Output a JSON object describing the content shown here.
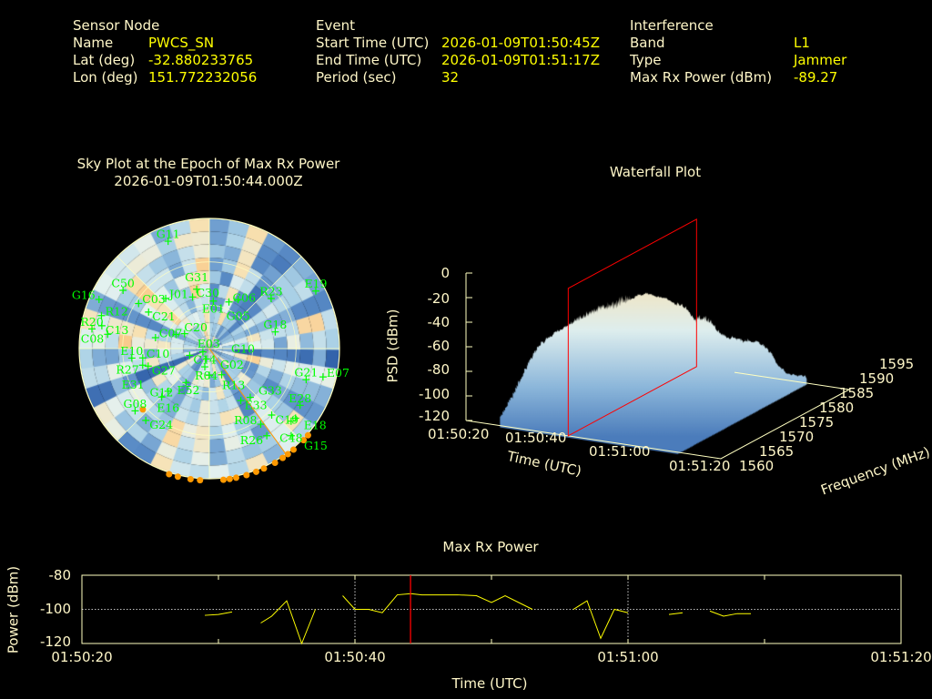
{
  "header": {
    "sensor": {
      "title": "Sensor Node",
      "rows": [
        {
          "label": "Name",
          "value": "PWCS_SN"
        },
        {
          "label": "Lat (deg)",
          "value": "-32.880233765"
        },
        {
          "label": "Lon (deg)",
          "value": "151.772232056"
        }
      ]
    },
    "event": {
      "title": "Event",
      "rows": [
        {
          "label": "Start Time (UTC)",
          "value": "2026-01-09T01:50:45Z"
        },
        {
          "label": "End Time (UTC)",
          "value": "2026-01-09T01:51:17Z"
        },
        {
          "label": "Period (sec)",
          "value": "32"
        }
      ]
    },
    "interference": {
      "title": "Interference",
      "rows": [
        {
          "label": "Band",
          "value": "L1"
        },
        {
          "label": "Type",
          "value": "Jammer"
        },
        {
          "label": "Max Rx Power (dBm)",
          "value": "-89.27"
        }
      ]
    }
  },
  "colors": {
    "label": "#fff7c8",
    "value": "#ffff00",
    "satellite": "#00ff00",
    "jammer": "#ff9900",
    "marker": "#ff0000",
    "line": "#ffff00"
  },
  "chart_data": [
    {
      "type": "scatter",
      "name": "sky-plot",
      "title": "Sky Plot at the Epoch of Max Rx Power",
      "subtitle": "2026-01-09T01:50:44.000Z",
      "coords": "azimuth_deg / elevation_deg",
      "elevation_rings": [
        0,
        30,
        60
      ],
      "satellites": [
        {
          "id": "G11",
          "az": 339,
          "el": 10.5
        },
        {
          "id": "C50",
          "az": 304,
          "el": 18
        },
        {
          "id": "C03",
          "az": 302.5,
          "el": 32
        },
        {
          "id": "J01",
          "az": 319,
          "el": 44
        },
        {
          "id": "G16",
          "az": 294,
          "el": 6.5
        },
        {
          "id": "C21",
          "az": 301,
          "el": 41
        },
        {
          "id": "C30",
          "az": 342,
          "el": 52.5
        },
        {
          "id": "G31",
          "az": 348,
          "el": 48
        },
        {
          "id": "E01",
          "az": 4.8,
          "el": 57
        },
        {
          "id": "C06",
          "az": 22.8,
          "el": 55
        },
        {
          "id": "G05",
          "az": 30.4,
          "el": 50.7
        },
        {
          "id": "R23",
          "az": 51,
          "el": 35
        },
        {
          "id": "E19",
          "az": 61.6,
          "el": 6.3
        },
        {
          "id": "R12",
          "az": 287,
          "el": 12
        },
        {
          "id": "R20",
          "az": 279.5,
          "el": 7.7
        },
        {
          "id": "C13",
          "az": 282,
          "el": 14
        },
        {
          "id": "C08",
          "az": 278,
          "el": 19
        },
        {
          "id": "C07",
          "az": 281.5,
          "el": 52
        },
        {
          "id": "C20",
          "az": 293,
          "el": 65
        },
        {
          "id": "E03",
          "az": 301,
          "el": 70
        },
        {
          "id": "G18",
          "az": 75.8,
          "el": 43
        },
        {
          "id": "E10",
          "az": 263,
          "el": 36
        },
        {
          "id": "C10",
          "az": 262,
          "el": 43.5
        },
        {
          "id": "G27",
          "az": 254,
          "el": 46
        },
        {
          "id": "R27",
          "az": 256,
          "el": 42.5
        },
        {
          "id": "C14",
          "az": 251,
          "el": 75.6
        },
        {
          "id": "G02",
          "az": 243,
          "el": 85
        },
        {
          "id": "R04",
          "az": 196,
          "el": 82.5
        },
        {
          "id": "R13",
          "az": 180,
          "el": 71.6
        },
        {
          "id": "E52",
          "az": 154.8,
          "el": 70
        },
        {
          "id": "G10",
          "az": 194,
          "el": 77
        },
        {
          "id": "G12",
          "az": 214.5,
          "el": 61.5
        },
        {
          "id": "E16",
          "az": 224,
          "el": 49
        },
        {
          "id": "E31",
          "az": 224.5,
          "el": 43
        },
        {
          "id": "G08",
          "az": 230,
          "el": 23
        },
        {
          "id": "G24",
          "az": 221.5,
          "el": 23.7
        },
        {
          "id": "E33",
          "az": 148.8,
          "el": 48
        },
        {
          "id": "G33",
          "az": 140,
          "el": 46
        },
        {
          "id": "G21",
          "az": 107.8,
          "el": 19.7
        },
        {
          "id": "E07",
          "az": 104,
          "el": 9
        },
        {
          "id": "E28",
          "az": 122,
          "el": 16
        },
        {
          "id": "C19",
          "az": 136.8,
          "el": 27
        },
        {
          "id": "E18",
          "az": 128.9,
          "el": 13.4
        },
        {
          "id": "C48",
          "az": 131.6,
          "el": 14.4
        },
        {
          "id": "G15",
          "az": 136.8,
          "el": 7.3
        },
        {
          "id": "R08",
          "az": 145.8,
          "el": 26.8
        },
        {
          "id": "R26",
          "az": 146.6,
          "el": 17.8
        }
      ],
      "jammer_bearing_az": 144,
      "jammer_detections": [
        {
          "az": 130.7,
          "el": 0
        },
        {
          "az": 133.6,
          "el": 0
        },
        {
          "az": 139.7,
          "el": 0
        },
        {
          "az": 142.9,
          "el": 0
        },
        {
          "az": 145.7,
          "el": 0
        },
        {
          "az": 149.7,
          "el": 0
        },
        {
          "az": 155.2,
          "el": 0
        },
        {
          "az": 158.9,
          "el": 0
        },
        {
          "az": 163.4,
          "el": 0
        },
        {
          "az": 168.1,
          "el": 0
        },
        {
          "az": 171,
          "el": 0
        },
        {
          "az": 173.8,
          "el": 0
        },
        {
          "az": 184.1,
          "el": 0
        },
        {
          "az": 188.3,
          "el": 0
        },
        {
          "az": 194,
          "el": 0
        },
        {
          "az": 198,
          "el": 0
        },
        {
          "az": 228.4,
          "el": 28.5
        }
      ]
    },
    {
      "type": "surface",
      "name": "waterfall-plot",
      "title": "Waterfall Plot",
      "zlabel": "PSD (dBm)",
      "xlabel": "Time (UTC)",
      "ylabel": "Frequency (MHz)",
      "zticks": [
        "0",
        "-20",
        "-40",
        "-60",
        "-80",
        "-100",
        "-120"
      ],
      "zlim": [
        -120,
        0
      ],
      "xticks": [
        "01:50:20",
        "01:50:40",
        "01:51:00",
        "01:51:20"
      ],
      "yticks": [
        "1560",
        "1565",
        "1570",
        "1575",
        "1580",
        "1585",
        "1590",
        "1595"
      ],
      "ylim": [
        1560,
        1595
      ],
      "marker_time": "01:50:44"
    },
    {
      "type": "line",
      "name": "max-rx-power",
      "title": "Max Rx Power",
      "xlabel": "Time (UTC)",
      "ylabel": "Power (dBm)",
      "xticks": [
        "01:50:20",
        "01:50:40",
        "01:51:00",
        "01:51:20"
      ],
      "yticks": [
        "-80",
        "-100",
        "-120"
      ],
      "xlim_s": [
        0,
        60
      ],
      "ylim": [
        -120,
        -80
      ],
      "x_unit": "seconds after 01:50:20",
      "segments": [
        [
          [
            9,
            -103.5
          ],
          [
            10,
            -103
          ],
          [
            11,
            -101.5
          ]
        ],
        [
          [
            13.1,
            -108
          ],
          [
            13.9,
            -104
          ],
          [
            15,
            -95
          ],
          [
            16.1,
            -120
          ],
          [
            17.1,
            -100
          ]
        ],
        [
          [
            19.1,
            -92
          ],
          [
            20,
            -100
          ],
          [
            21,
            -100
          ],
          [
            22,
            -102
          ],
          [
            23.1,
            -91.5
          ],
          [
            24.1,
            -90.8
          ],
          [
            24.9,
            -91.5
          ],
          [
            27.5,
            -91.5
          ],
          [
            28.9,
            -92
          ],
          [
            30,
            -96
          ],
          [
            31,
            -92
          ],
          [
            33,
            -100
          ]
        ],
        [
          [
            36,
            -100
          ],
          [
            37,
            -95
          ],
          [
            38,
            -117
          ],
          [
            39,
            -100
          ],
          [
            40,
            -102
          ]
        ],
        [
          [
            43,
            -103
          ],
          [
            44,
            -102
          ]
        ],
        [
          [
            46,
            -101
          ],
          [
            47,
            -104
          ],
          [
            48,
            -102.5
          ],
          [
            49,
            -102.5
          ]
        ]
      ],
      "marker_s": 24.07
    }
  ]
}
